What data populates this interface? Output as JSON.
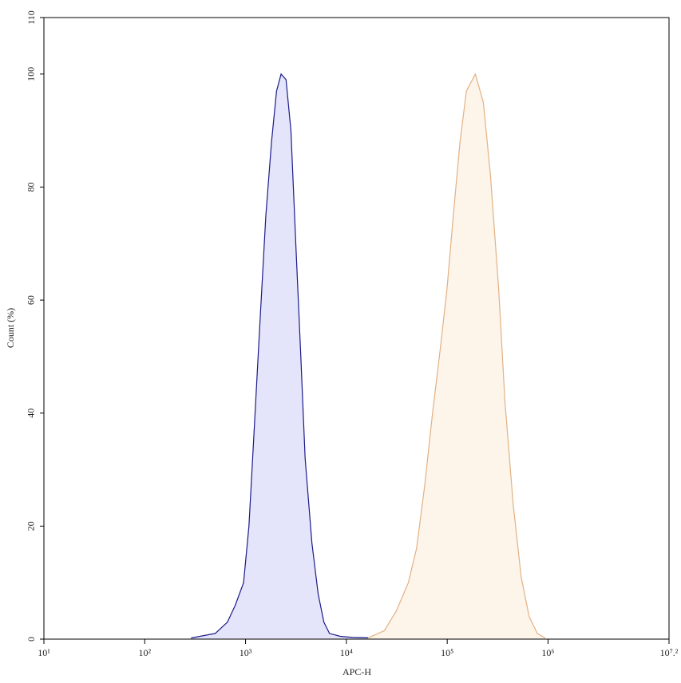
{
  "chart_data": {
    "type": "histogram-overlay",
    "x_label": "APC-H",
    "y_label": "Count (%)",
    "x_log": true,
    "xlim": [
      10,
      15848931.9
    ],
    "ylim": [
      0,
      110
    ],
    "xticks": [
      {
        "value": 10,
        "label": "10¹"
      },
      {
        "value": 100,
        "label": "10²"
      },
      {
        "value": 1000,
        "label": "10³"
      },
      {
        "value": 10000,
        "label": "10⁴"
      },
      {
        "value": 100000,
        "label": "10⁵"
      },
      {
        "value": 1000000,
        "label": "10⁶"
      },
      {
        "value": 15848931.9,
        "label": "10⁷.²"
      }
    ],
    "yticks": [
      0,
      20,
      40,
      60,
      80,
      100,
      110
    ],
    "series": [
      {
        "color": "#1b1b8a",
        "fill": "#e4e4fa",
        "x": [
          288,
          500,
          660,
          790,
          955,
          1080,
          1200,
          1380,
          1590,
          1810,
          2030,
          2250,
          2520,
          2820,
          3150,
          3530,
          3900,
          4550,
          5250,
          5980,
          6800,
          8700,
          11500,
          19900,
          50000
        ],
        "values": [
          0.2,
          1,
          3,
          6,
          10,
          20,
          35,
          55,
          75,
          88,
          97,
          100,
          99,
          90,
          70,
          50,
          32,
          17,
          8,
          3,
          1,
          0.5,
          0.3,
          0.2,
          0.1
        ]
      },
      {
        "color": "#e2b184",
        "fill": "#fdf4ea",
        "x": [
          16400,
          23800,
          31300,
          41200,
          49600,
          59600,
          71600,
          86100,
          99600,
          115000,
          134000,
          155000,
          190000,
          228000,
          269000,
          324000,
          374000,
          450000,
          541000,
          650000,
          782000,
          938000
        ],
        "values": [
          0.2,
          1.5,
          5,
          10,
          16,
          27,
          40,
          52,
          62,
          75,
          88,
          97,
          100,
          95,
          82,
          62,
          42,
          24,
          11,
          4,
          1,
          0.2
        ]
      }
    ]
  }
}
